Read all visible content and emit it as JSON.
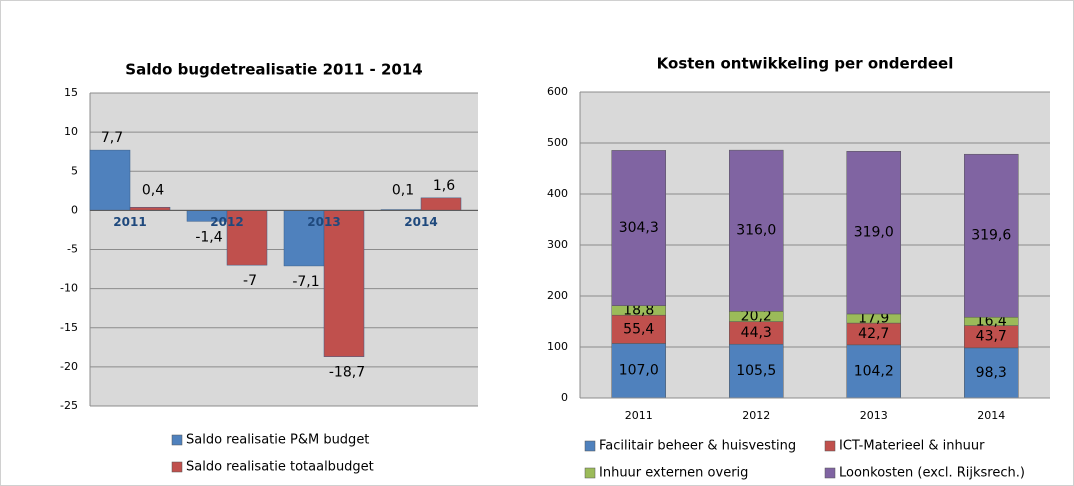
{
  "chart_data": [
    {
      "type": "bar",
      "title": "Saldo bugdetrealisatie 2011 - 2014",
      "categories": [
        "2011",
        "2012",
        "2013",
        "2014"
      ],
      "series": [
        {
          "name": "Saldo realisatie P&M budget",
          "color": "#4f81bd",
          "values": [
            7.7,
            -1.4,
            -7.1,
            0.1
          ],
          "value_labels": [
            "7,7",
            "-1,4",
            "-7,1",
            "0,1"
          ]
        },
        {
          "name": "Saldo realisatie totaalbudget",
          "color": "#c0504d",
          "values": [
            0.4,
            -7,
            -18.7,
            1.6
          ],
          "value_labels": [
            "0,4",
            "-7",
            "-18,7",
            "1,6"
          ]
        }
      ],
      "ylim": [
        -25,
        15
      ],
      "yticks": [
        -25,
        -20,
        -15,
        -10,
        -5,
        0,
        5,
        10,
        15
      ],
      "grid": true,
      "legend": "bottom"
    },
    {
      "type": "stacked_bar",
      "title": "Kosten ontwikkeling per onderdeel",
      "categories": [
        "2011",
        "2012",
        "2013",
        "2014"
      ],
      "series": [
        {
          "name": "Facilitair beheer & huisvesting",
          "color": "#4f81bd",
          "values": [
            107.0,
            105.5,
            104.2,
            98.3
          ],
          "value_labels": [
            "107,0",
            "105,5",
            "104,2",
            "98,3"
          ]
        },
        {
          "name": "ICT-Materieel & inhuur",
          "color": "#c0504d",
          "values": [
            55.4,
            44.3,
            42.7,
            43.7
          ],
          "value_labels": [
            "55,4",
            "44,3",
            "42,7",
            "43,7"
          ]
        },
        {
          "name": "Inhuur externen overig",
          "color": "#9bbb59",
          "values": [
            18.8,
            20.2,
            17.9,
            16.4
          ],
          "value_labels": [
            "18,8",
            "20,2",
            "17,9",
            "16,4"
          ]
        },
        {
          "name": "Loonkosten (excl. Rijksrech.)",
          "color": "#8064a2",
          "values": [
            304.3,
            316.0,
            319.0,
            319.6
          ],
          "value_labels": [
            "304,3",
            "316,0",
            "319,0",
            "319,6"
          ]
        }
      ],
      "ylim": [
        0,
        600
      ],
      "yticks": [
        0,
        100,
        200,
        300,
        400,
        500,
        600
      ],
      "grid": true,
      "legend": "bottom"
    }
  ]
}
